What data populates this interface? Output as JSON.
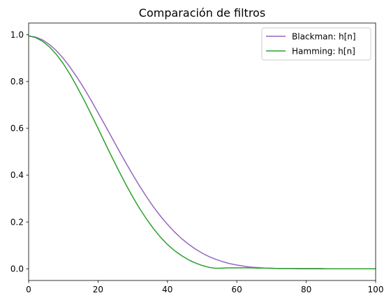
{
  "chart_data": {
    "type": "line",
    "title": "Comparación de filtros",
    "xlabel": "",
    "ylabel": "",
    "xlim": [
      0,
      100
    ],
    "ylim": [
      -0.05,
      1.05
    ],
    "xticks": [
      0,
      20,
      40,
      60,
      80,
      100
    ],
    "xtick_labels": [
      "0",
      "20",
      "40",
      "60",
      "80",
      "100"
    ],
    "yticks": [
      0.0,
      0.2,
      0.4,
      0.6,
      0.8,
      1.0
    ],
    "ytick_labels": [
      "0.0",
      "0.2",
      "0.4",
      "0.6",
      "0.8",
      "1.0"
    ],
    "grid": false,
    "legend_position": "top-right",
    "series": [
      {
        "name": "Blackman: h[n]",
        "color": "#9467bd",
        "x": [
          0,
          2,
          4,
          6,
          8,
          10,
          12,
          14,
          16,
          18,
          20,
          22,
          24,
          26,
          28,
          30,
          32,
          34,
          36,
          38,
          40,
          42,
          44,
          46,
          48,
          50,
          52,
          54,
          56,
          58,
          60,
          62,
          64,
          66,
          68,
          70,
          72,
          74,
          76,
          78,
          80,
          82,
          84,
          86,
          88,
          90,
          92,
          94,
          96,
          98,
          100
        ],
        "y": [
          0.995,
          0.99,
          0.978,
          0.958,
          0.932,
          0.899,
          0.86,
          0.817,
          0.77,
          0.72,
          0.667,
          0.614,
          0.56,
          0.506,
          0.453,
          0.402,
          0.353,
          0.307,
          0.264,
          0.225,
          0.19,
          0.158,
          0.13,
          0.106,
          0.085,
          0.067,
          0.052,
          0.04,
          0.03,
          0.022,
          0.016,
          0.011,
          0.007,
          0.005,
          0.003,
          0.002,
          0.001,
          0.001,
          0.001,
          0.0,
          0.0,
          0.0,
          0.0,
          0.0,
          0.0,
          0.0,
          0.0,
          0.0,
          0.0,
          0.0,
          0.0
        ]
      },
      {
        "name": "Hamming: h[n]",
        "color": "#2ca02c",
        "x": [
          0,
          2,
          4,
          6,
          8,
          10,
          12,
          14,
          16,
          18,
          20,
          22,
          24,
          26,
          28,
          30,
          32,
          34,
          36,
          38,
          40,
          42,
          44,
          46,
          48,
          50,
          52,
          54,
          56,
          58,
          60,
          62,
          64,
          66,
          68,
          70,
          72,
          74,
          76,
          78,
          80,
          82,
          84,
          86,
          88,
          90,
          92,
          94,
          96,
          98,
          100
        ],
        "y": [
          0.995,
          0.988,
          0.972,
          0.948,
          0.916,
          0.876,
          0.829,
          0.776,
          0.72,
          0.661,
          0.6,
          0.538,
          0.477,
          0.418,
          0.361,
          0.307,
          0.257,
          0.212,
          0.171,
          0.135,
          0.104,
          0.078,
          0.057,
          0.039,
          0.025,
          0.014,
          0.006,
          0.002,
          0.003,
          0.004,
          0.004,
          0.004,
          0.004,
          0.003,
          0.003,
          0.002,
          0.001,
          0.001,
          0.001,
          0.001,
          0.001,
          0.001,
          0.001,
          0.0,
          0.0,
          0.0,
          0.0,
          0.0,
          0.0,
          0.0,
          0.0
        ]
      }
    ]
  }
}
